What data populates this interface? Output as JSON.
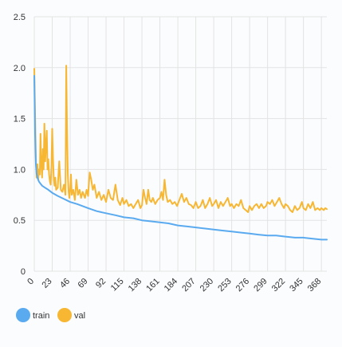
{
  "chart_data": {
    "type": "line",
    "title": "",
    "xlabel": "",
    "ylabel": "",
    "ylim": [
      0,
      2.5
    ],
    "xlim": [
      0,
      375
    ],
    "y_ticks": [
      0,
      0.5,
      1.0,
      1.5,
      2.0,
      2.5
    ],
    "y_tick_labels": [
      "0",
      "0.5",
      "1.0",
      "1.5",
      "2.0",
      "2.5"
    ],
    "x_ticks": [
      0,
      23,
      46,
      69,
      92,
      115,
      138,
      161,
      184,
      207,
      230,
      253,
      276,
      299,
      322,
      345,
      368
    ],
    "x_tick_labels": [
      "0",
      "23",
      "46",
      "69",
      "92",
      "115",
      "138",
      "161",
      "184",
      "207",
      "230",
      "253",
      "276",
      "299",
      "322",
      "345",
      "368"
    ],
    "grid": true,
    "legend_position": "bottom-left",
    "series": [
      {
        "name": "train",
        "color": "#5aaaf0",
        "points": [
          [
            0,
            1.92
          ],
          [
            1,
            1.35
          ],
          [
            2,
            1.05
          ],
          [
            3,
            0.96
          ],
          [
            4,
            0.92
          ],
          [
            6,
            0.88
          ],
          [
            8,
            0.86
          ],
          [
            10,
            0.84
          ],
          [
            14,
            0.82
          ],
          [
            18,
            0.8
          ],
          [
            23,
            0.77
          ],
          [
            30,
            0.74
          ],
          [
            38,
            0.71
          ],
          [
            46,
            0.68
          ],
          [
            55,
            0.66
          ],
          [
            69,
            0.62
          ],
          [
            80,
            0.59
          ],
          [
            92,
            0.57
          ],
          [
            104,
            0.55
          ],
          [
            115,
            0.53
          ],
          [
            127,
            0.52
          ],
          [
            138,
            0.5
          ],
          [
            150,
            0.49
          ],
          [
            161,
            0.48
          ],
          [
            172,
            0.47
          ],
          [
            184,
            0.45
          ],
          [
            196,
            0.44
          ],
          [
            207,
            0.43
          ],
          [
            218,
            0.42
          ],
          [
            230,
            0.41
          ],
          [
            241,
            0.4
          ],
          [
            253,
            0.39
          ],
          [
            264,
            0.38
          ],
          [
            276,
            0.37
          ],
          [
            287,
            0.36
          ],
          [
            299,
            0.35
          ],
          [
            310,
            0.35
          ],
          [
            322,
            0.34
          ],
          [
            334,
            0.33
          ],
          [
            345,
            0.33
          ],
          [
            357,
            0.32
          ],
          [
            368,
            0.31
          ],
          [
            375,
            0.31
          ]
        ]
      },
      {
        "name": "val",
        "color": "#f7b733",
        "points": [
          [
            0,
            1.99
          ],
          [
            1,
            1.55
          ],
          [
            2,
            1.1
          ],
          [
            3,
            0.92
          ],
          [
            4,
            1.05
          ],
          [
            5,
            0.9
          ],
          [
            6,
            1.0
          ],
          [
            7,
            0.95
          ],
          [
            8,
            1.35
          ],
          [
            9,
            1.05
          ],
          [
            10,
            0.92
          ],
          [
            11,
            1.2
          ],
          [
            12,
            1.0
          ],
          [
            13,
            1.45
          ],
          [
            14,
            1.08
          ],
          [
            15,
            1.25
          ],
          [
            16,
            1.38
          ],
          [
            17,
            1.0
          ],
          [
            18,
            1.1
          ],
          [
            19,
            0.95
          ],
          [
            20,
            0.88
          ],
          [
            21,
            0.85
          ],
          [
            22,
            1.02
          ],
          [
            23,
            1.4
          ],
          [
            24,
            1.1
          ],
          [
            25,
            0.9
          ],
          [
            26,
            0.84
          ],
          [
            27,
            0.92
          ],
          [
            28,
            0.8
          ],
          [
            30,
            0.82
          ],
          [
            32,
            1.08
          ],
          [
            34,
            0.8
          ],
          [
            36,
            0.78
          ],
          [
            38,
            0.85
          ],
          [
            40,
            0.75
          ],
          [
            41,
            2.02
          ],
          [
            42,
            1.4
          ],
          [
            43,
            0.95
          ],
          [
            44,
            0.78
          ],
          [
            45,
            0.72
          ],
          [
            46,
            0.8
          ],
          [
            47,
            0.95
          ],
          [
            48,
            0.75
          ],
          [
            50,
            0.8
          ],
          [
            52,
            0.7
          ],
          [
            54,
            0.9
          ],
          [
            56,
            0.75
          ],
          [
            58,
            0.8
          ],
          [
            60,
            0.72
          ],
          [
            62,
            0.78
          ],
          [
            65,
            0.72
          ],
          [
            67,
            0.8
          ],
          [
            69,
            0.74
          ],
          [
            71,
            0.97
          ],
          [
            73,
            0.9
          ],
          [
            75,
            0.8
          ],
          [
            77,
            0.85
          ],
          [
            80,
            0.72
          ],
          [
            83,
            0.78
          ],
          [
            86,
            0.7
          ],
          [
            89,
            0.75
          ],
          [
            92,
            0.68
          ],
          [
            95,
            0.8
          ],
          [
            98,
            0.72
          ],
          [
            101,
            0.7
          ],
          [
            104,
            0.85
          ],
          [
            107,
            0.7
          ],
          [
            110,
            0.65
          ],
          [
            113,
            0.72
          ],
          [
            115,
            0.66
          ],
          [
            118,
            0.7
          ],
          [
            121,
            0.64
          ],
          [
            124,
            0.66
          ],
          [
            127,
            0.62
          ],
          [
            130,
            0.66
          ],
          [
            133,
            0.7
          ],
          [
            136,
            0.62
          ],
          [
            138,
            0.65
          ],
          [
            140,
            0.8
          ],
          [
            142,
            0.72
          ],
          [
            144,
            0.66
          ],
          [
            146,
            0.8
          ],
          [
            148,
            0.7
          ],
          [
            150,
            0.68
          ],
          [
            152,
            0.72
          ],
          [
            155,
            0.66
          ],
          [
            158,
            0.7
          ],
          [
            161,
            0.72
          ],
          [
            163,
            0.78
          ],
          [
            165,
            0.7
          ],
          [
            167,
            0.9
          ],
          [
            169,
            0.75
          ],
          [
            171,
            0.68
          ],
          [
            174,
            0.7
          ],
          [
            177,
            0.66
          ],
          [
            180,
            0.68
          ],
          [
            183,
            0.64
          ],
          [
            186,
            0.7
          ],
          [
            189,
            0.76
          ],
          [
            192,
            0.68
          ],
          [
            195,
            0.72
          ],
          [
            198,
            0.66
          ],
          [
            201,
            0.65
          ],
          [
            204,
            0.62
          ],
          [
            207,
            0.68
          ],
          [
            210,
            0.62
          ],
          [
            213,
            0.64
          ],
          [
            216,
            0.7
          ],
          [
            219,
            0.62
          ],
          [
            222,
            0.66
          ],
          [
            225,
            0.72
          ],
          [
            228,
            0.64
          ],
          [
            230,
            0.66
          ],
          [
            233,
            0.7
          ],
          [
            236,
            0.62
          ],
          [
            239,
            0.68
          ],
          [
            242,
            0.64
          ],
          [
            245,
            0.68
          ],
          [
            248,
            0.72
          ],
          [
            251,
            0.64
          ],
          [
            253,
            0.66
          ],
          [
            256,
            0.62
          ],
          [
            259,
            0.66
          ],
          [
            262,
            0.64
          ],
          [
            265,
            0.7
          ],
          [
            268,
            0.62
          ],
          [
            271,
            0.6
          ],
          [
            274,
            0.58
          ],
          [
            276,
            0.64
          ],
          [
            279,
            0.6
          ],
          [
            282,
            0.64
          ],
          [
            285,
            0.66
          ],
          [
            288,
            0.62
          ],
          [
            291,
            0.66
          ],
          [
            294,
            0.62
          ],
          [
            297,
            0.64
          ],
          [
            299,
            0.68
          ],
          [
            302,
            0.66
          ],
          [
            305,
            0.7
          ],
          [
            308,
            0.64
          ],
          [
            311,
            0.68
          ],
          [
            314,
            0.72
          ],
          [
            317,
            0.66
          ],
          [
            320,
            0.62
          ],
          [
            322,
            0.66
          ],
          [
            325,
            0.64
          ],
          [
            328,
            0.6
          ],
          [
            331,
            0.58
          ],
          [
            334,
            0.64
          ],
          [
            337,
            0.6
          ],
          [
            340,
            0.62
          ],
          [
            343,
            0.68
          ],
          [
            345,
            0.62
          ],
          [
            348,
            0.6
          ],
          [
            351,
            0.66
          ],
          [
            354,
            0.62
          ],
          [
            357,
            0.68
          ],
          [
            360,
            0.6
          ],
          [
            363,
            0.62
          ],
          [
            366,
            0.6
          ],
          [
            368,
            0.62
          ],
          [
            371,
            0.6
          ],
          [
            373,
            0.62
          ],
          [
            375,
            0.61
          ]
        ]
      }
    ]
  }
}
